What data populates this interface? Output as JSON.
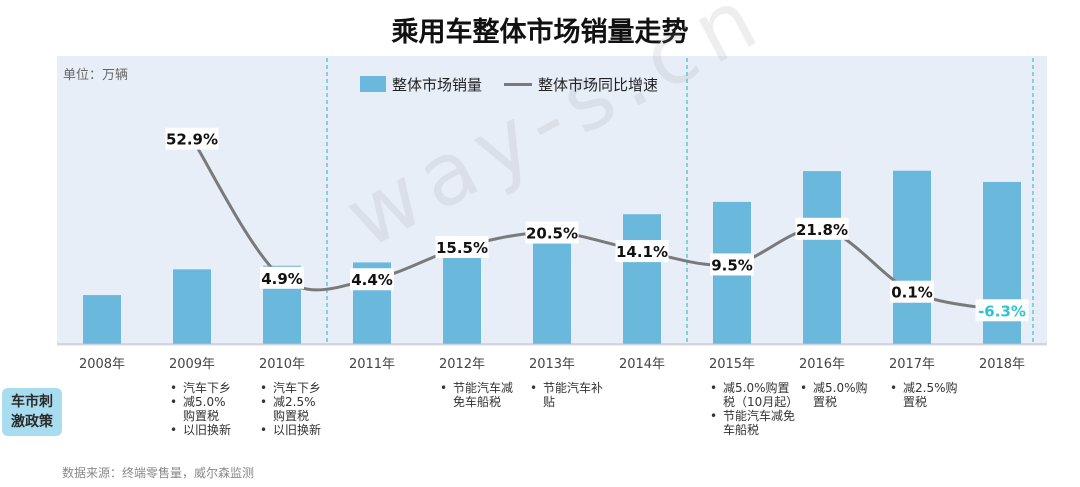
{
  "title": "乘用车整体市场销量走势",
  "unit_label": "单位：万辆",
  "watermark": "way-s.cn",
  "source": "数据来源：终端零售量，威尔森监测",
  "policy_label": [
    "车市刺",
    "激政策"
  ],
  "colors": {
    "bar": "#6ab9dd",
    "line": "#7a7a7a",
    "panel": "#e7eef8",
    "divider": "#3dc3c3",
    "negative_label": "#2ec4d4"
  },
  "chart_data": {
    "type": "bar",
    "categories": [
      "2008年",
      "2009年",
      "2010年",
      "2011年",
      "2012年",
      "2013年",
      "2014年",
      "2015年",
      "2016年",
      "2017年",
      "2018年"
    ],
    "series": [
      {
        "name": "整体市场销量",
        "type": "bar",
        "values": [
          675,
          1030,
          1080,
          1125,
          1300,
          1570,
          1790,
          1960,
          2385,
          2390,
          2235
        ]
      },
      {
        "name": "整体市场同比增速",
        "type": "line",
        "values": [
          null,
          52.9,
          4.9,
          4.4,
          15.5,
          20.5,
          14.1,
          9.5,
          21.8,
          0.1,
          -6.3
        ],
        "labels": [
          "",
          "52.9%",
          "4.9%",
          "4.4%",
          "15.5%",
          "20.5%",
          "14.1%",
          "9.5%",
          "21.8%",
          "0.1%",
          "-6.3%"
        ]
      }
    ],
    "legend": {
      "position": "top-center",
      "entries": [
        "整体市场销量",
        "整体市场同比增速"
      ]
    },
    "grid": false,
    "dividers_after": [
      "2010年",
      "2014年",
      "2018年"
    ]
  },
  "policies": [
    {
      "year": "2009年",
      "items": [
        "汽车下乡",
        "减5.0%",
        "购置税",
        "以旧换新"
      ],
      "bullets": [
        0,
        1,
        3
      ]
    },
    {
      "year": "2010年",
      "items": [
        "汽车下乡",
        "减2.5%",
        "购置税",
        "以旧换新"
      ],
      "bullets": [
        0,
        1,
        3
      ]
    },
    {
      "year": "2012年",
      "items": [
        "节能汽车减",
        "免车船税"
      ],
      "bullets": [
        0
      ]
    },
    {
      "year": "2013年",
      "items": [
        "节能汽车补",
        "贴"
      ],
      "bullets": [
        0
      ]
    },
    {
      "year": "2015年",
      "items": [
        "减5.0%购置",
        "税（10月起）",
        "节能汽车减免",
        "车船税"
      ],
      "bullets": [
        0,
        2
      ]
    },
    {
      "year": "2016年",
      "items": [
        "减5.0%购",
        "置税"
      ],
      "bullets": [
        0
      ]
    },
    {
      "year": "2017年",
      "items": [
        "减2.5%购",
        "置税"
      ],
      "bullets": [
        0
      ]
    }
  ]
}
